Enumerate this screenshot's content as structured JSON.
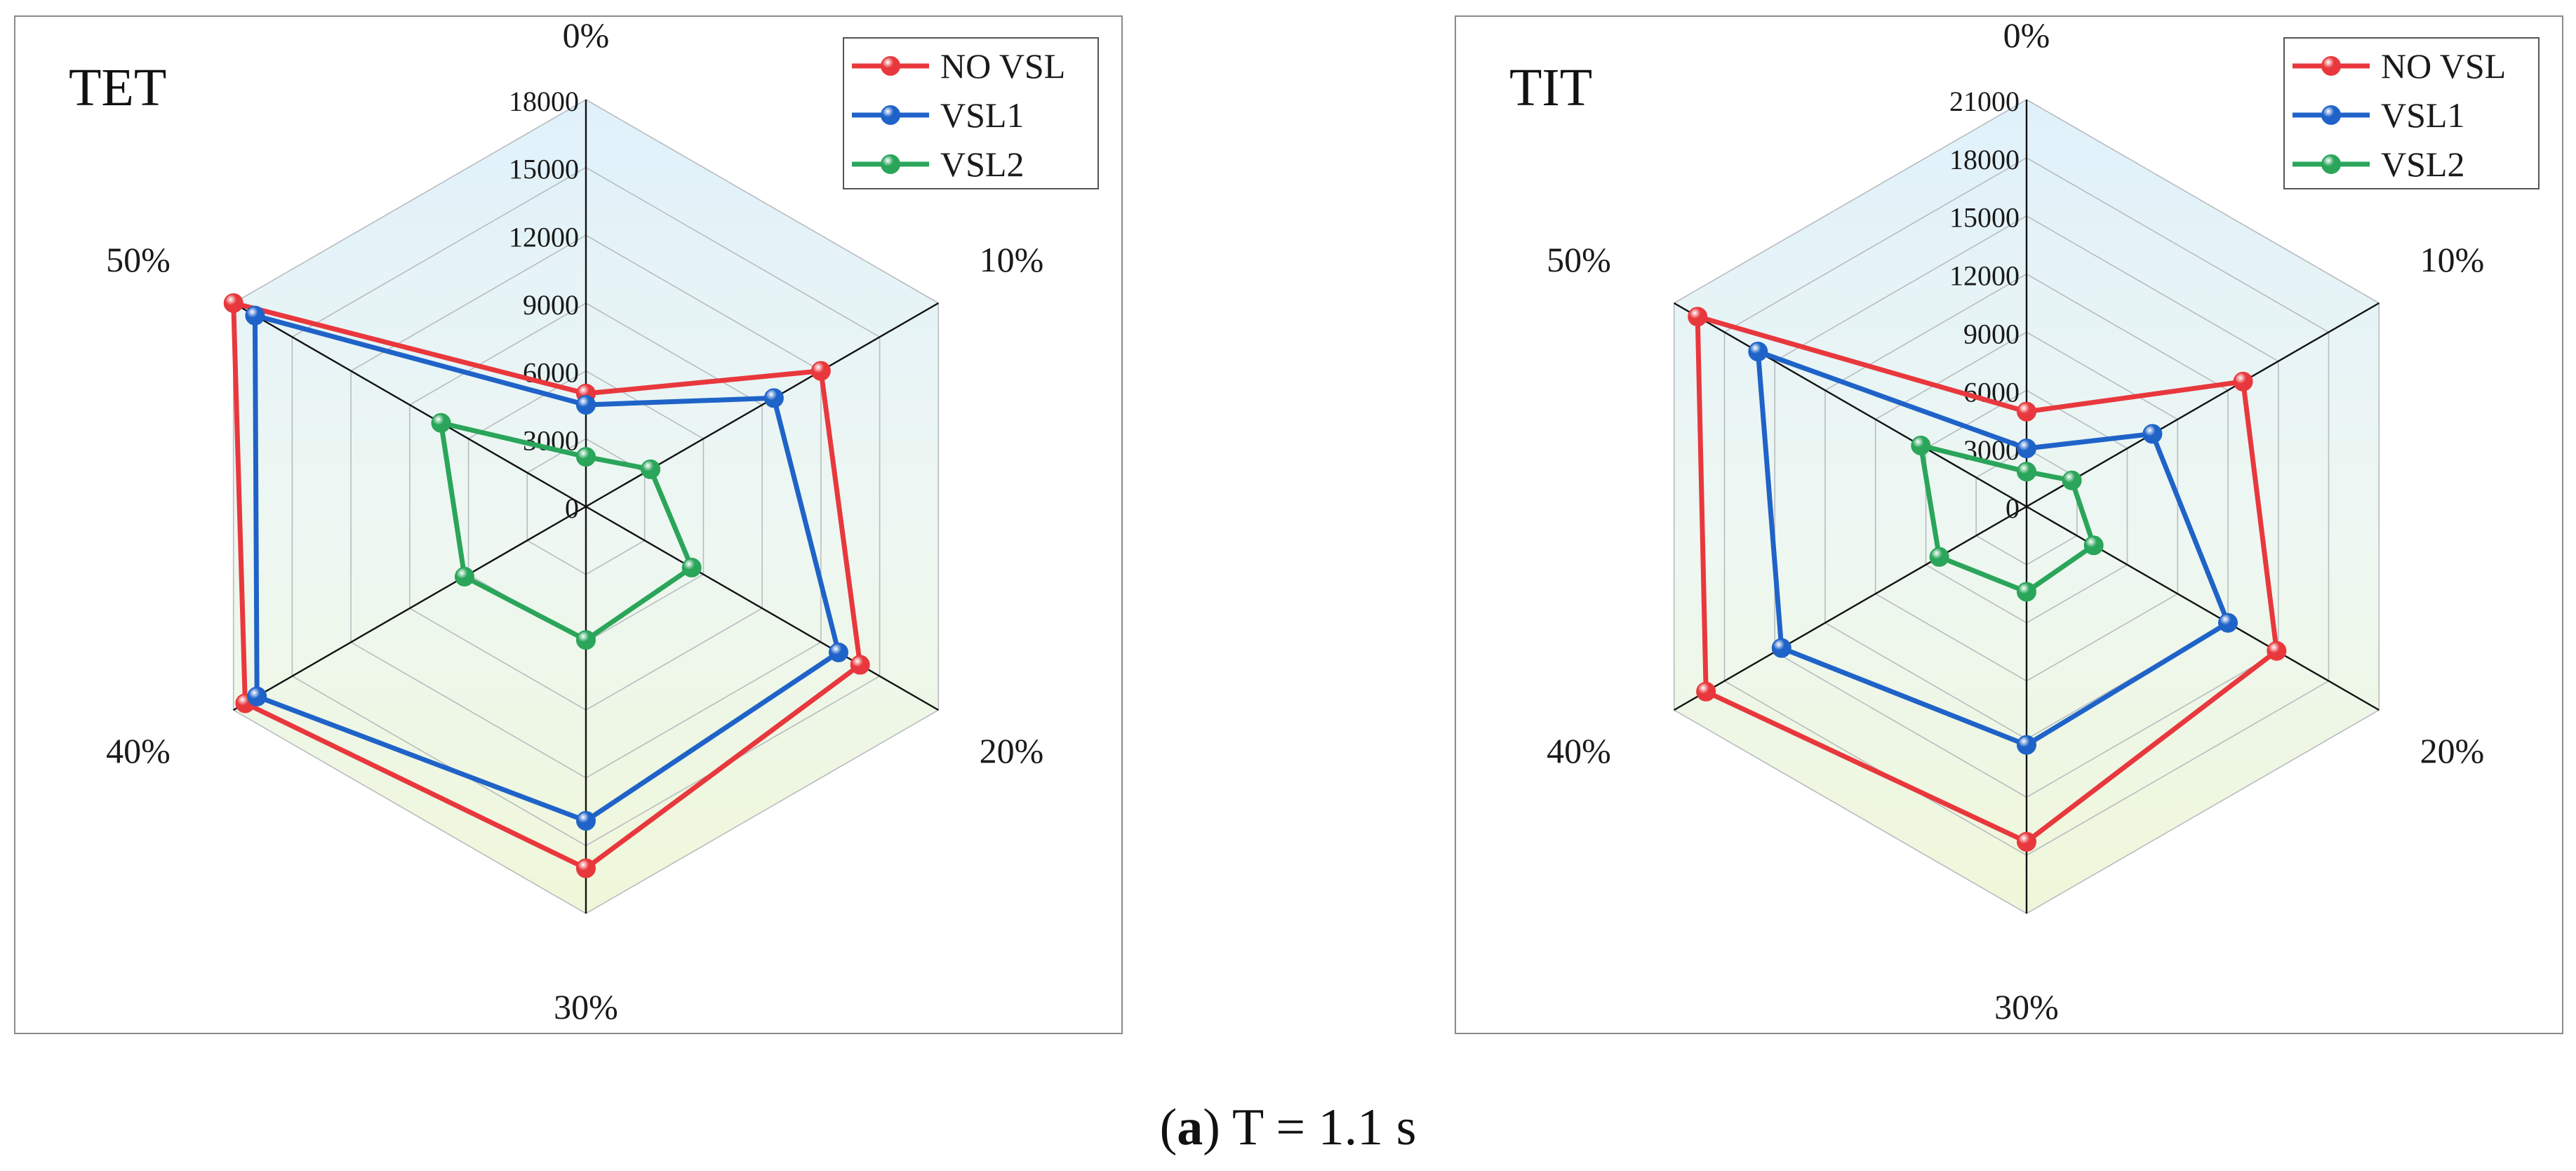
{
  "caption": {
    "label": "a",
    "text": " T = 1.1 s"
  },
  "chart_data": [
    {
      "type": "radar",
      "title": "TET",
      "categories": [
        "0%",
        "10%",
        "20%",
        "30%",
        "40%",
        "50%"
      ],
      "rlim": [
        0,
        18000
      ],
      "ticks": [
        "0",
        "3000",
        "6000",
        "9000",
        "12000",
        "15000",
        "18000"
      ],
      "tick_values": [
        0,
        3000,
        6000,
        9000,
        12000,
        15000,
        18000
      ],
      "legend_position": "top-right",
      "series": [
        {
          "name": "NO VSL",
          "color": "#e8383d",
          "values": [
            5000,
            12000,
            14000,
            16000,
            17400,
            18000
          ]
        },
        {
          "name": "VSL1",
          "color": "#1f63c8",
          "values": [
            4500,
            9600,
            12900,
            13900,
            16800,
            16900
          ]
        },
        {
          "name": "VSL2",
          "color": "#2aa55a",
          "values": [
            2200,
            3300,
            5400,
            5900,
            6200,
            7400
          ]
        }
      ]
    },
    {
      "type": "radar",
      "title": "TIT",
      "categories": [
        "0%",
        "10%",
        "20%",
        "30%",
        "40%",
        "50%"
      ],
      "rlim": [
        0,
        21000
      ],
      "ticks": [
        "0",
        "3000",
        "6000",
        "9000",
        "12000",
        "15000",
        "18000",
        "21000"
      ],
      "tick_values": [
        0,
        3000,
        6000,
        9000,
        12000,
        15000,
        18000,
        21000
      ],
      "legend_position": "top-right",
      "series": [
        {
          "name": "NO VSL",
          "color": "#e8383d",
          "values": [
            4900,
            12900,
            14900,
            17300,
            19100,
            19600
          ]
        },
        {
          "name": "VSL1",
          "color": "#1f63c8",
          "values": [
            3000,
            7500,
            12000,
            12300,
            14600,
            16000
          ]
        },
        {
          "name": "VSL2",
          "color": "#2aa55a",
          "values": [
            1800,
            2700,
            4000,
            4400,
            5200,
            6300
          ]
        }
      ]
    }
  ]
}
